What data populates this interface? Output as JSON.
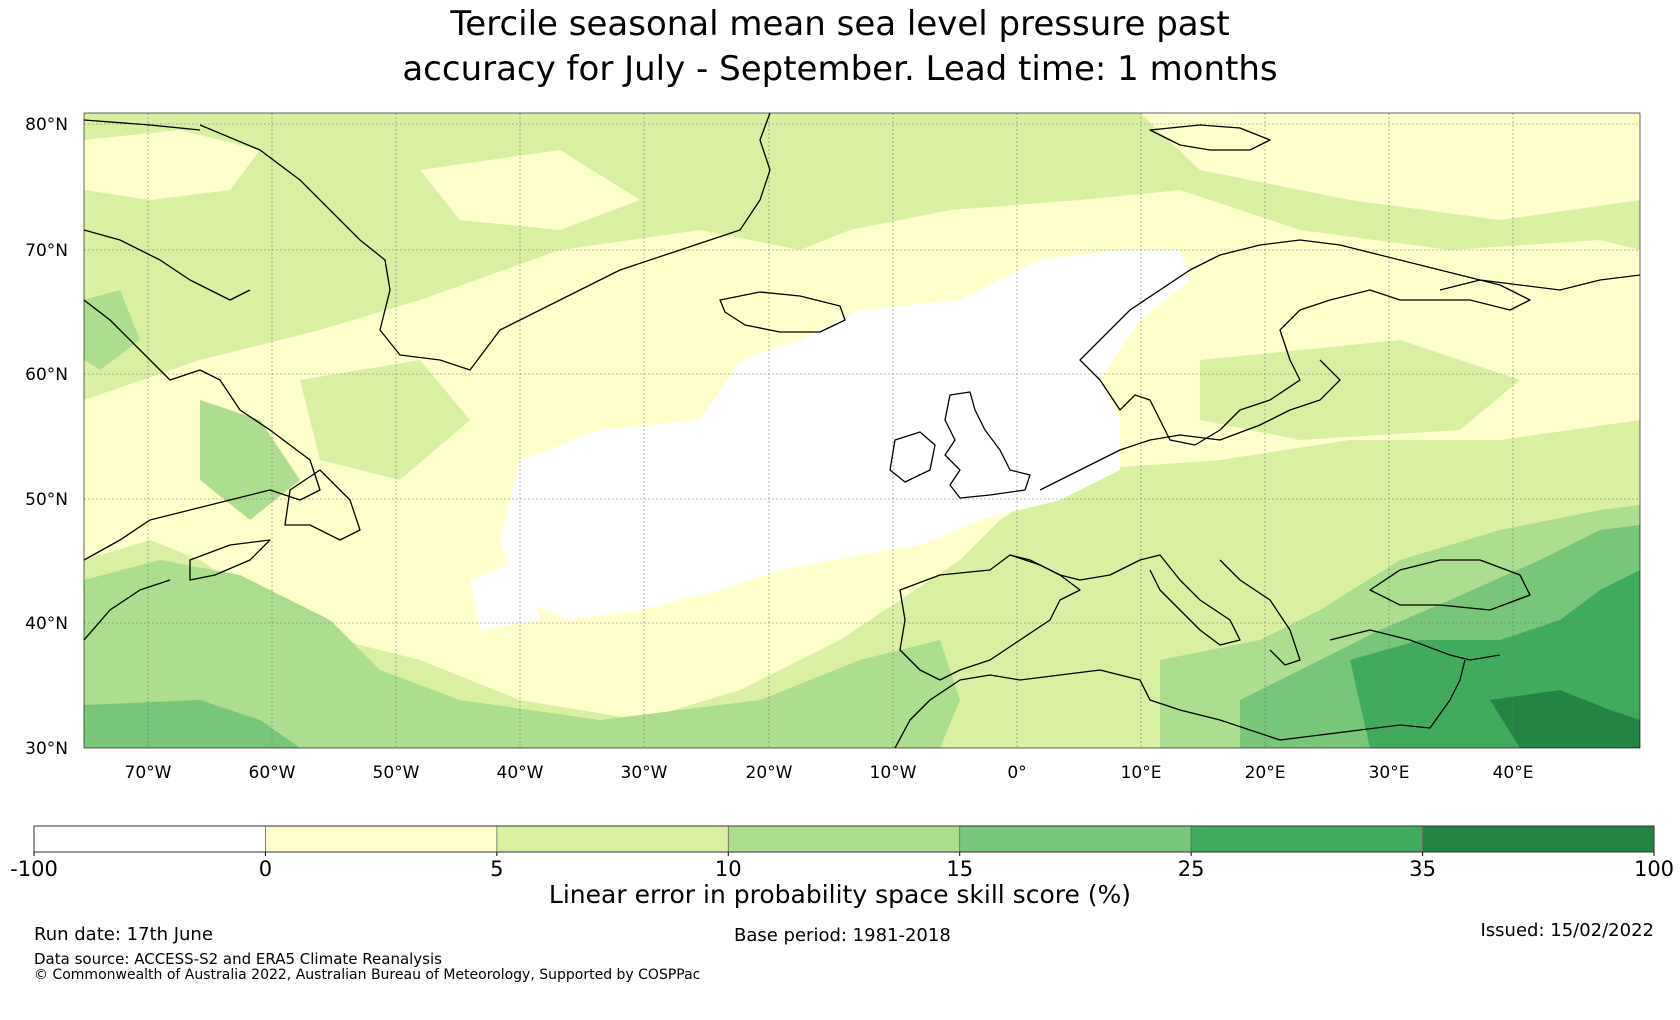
{
  "title_line1": "Tercile seasonal mean sea level pressure past",
  "title_line2": "accuracy for July - September. Lead time: 1 months",
  "map": {
    "lat_labels": [
      "80°N",
      "70°N",
      "60°N",
      "50°N",
      "40°N",
      "30°N"
    ],
    "lon_labels": [
      "70°W",
      "60°W",
      "50°W",
      "40°W",
      "30°W",
      "20°W",
      "10°W",
      "0°",
      "10°E",
      "20°E",
      "30°E",
      "40°E"
    ]
  },
  "colorbar": {
    "title": "Linear error in probability space skill score (%)",
    "tick_labels": [
      "-100",
      "0",
      "5",
      "10",
      "15",
      "25",
      "35",
      "100"
    ],
    "colors": [
      "#ffffff",
      "#ffffcc",
      "#d9f0a3",
      "#addd8e",
      "#78c679",
      "#41ab5d",
      "#238443"
    ]
  },
  "footer": {
    "run_date": "Run date: 17th June",
    "base_period": "Base period: 1981-2018",
    "issued": "Issued: 15/02/2022",
    "data_source": "Data source: ACCESS-S2 and ERA5 Climate Reanalysis",
    "copyright": "© Commonwealth of Australia 2022, Australian Bureau of Meteorology, Supported by COSPPac"
  }
}
